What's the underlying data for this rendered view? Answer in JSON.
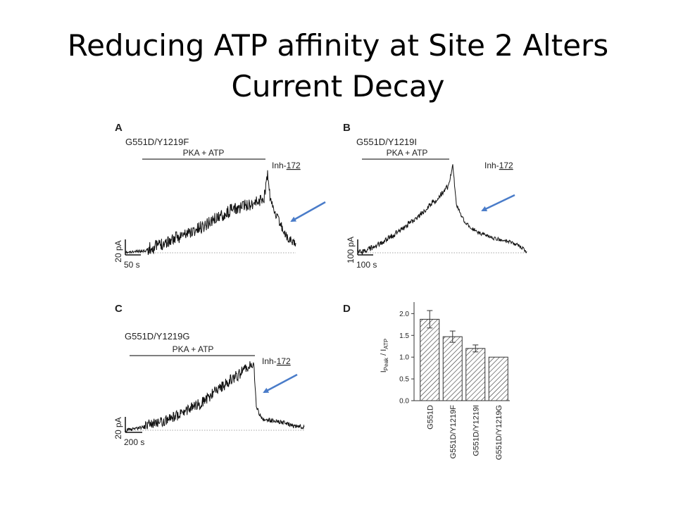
{
  "slide": {
    "title_line1": "Reducing ATP affinity at Site 2 Alters",
    "title_line2": "Current Decay",
    "arrow_color": "#4a7cc9",
    "trace_color": "#111111"
  },
  "panels": {
    "A": {
      "letter": "A",
      "mutant": "G551D/Y1219F",
      "pka_label": "PKA + ATP",
      "inh_prefix": "Inh-",
      "inh_underlined": "172",
      "scale_y": "20 pA",
      "scale_x": "50 s"
    },
    "B": {
      "letter": "B",
      "mutant": "G551D/Y1219I",
      "pka_label": "PKA + ATP",
      "inh_prefix": "Inh-",
      "inh_underlined": "172",
      "scale_y": "100 pA",
      "scale_x": "100 s"
    },
    "C": {
      "letter": "C",
      "mutant": "G551D/Y1219G",
      "pka_label": "PKA + ATP",
      "inh_prefix": "Inh-",
      "inh_underlined": "172",
      "scale_y": "20 pA",
      "scale_x": "200 s"
    },
    "D": {
      "letter": "D"
    }
  },
  "chart_data": {
    "type": "bar",
    "ylabel_main": "I",
    "ylabel_sub_1": "Peak",
    "ylabel_sep": " / I",
    "ylabel_sub_2": "ATP",
    "categories": [
      "G551D",
      "G551D/Y1219F",
      "G551D/Y1219I",
      "G551D/Y1219G"
    ],
    "values": [
      1.87,
      1.47,
      1.2,
      1.0
    ],
    "errors": [
      0.2,
      0.13,
      0.08,
      0.0
    ],
    "ylim": [
      0,
      2.2
    ],
    "yticks": [
      "0.0",
      "0.5",
      "1.0",
      "1.5",
      "2.0"
    ],
    "bar_pattern": "diagonal-hatch"
  }
}
